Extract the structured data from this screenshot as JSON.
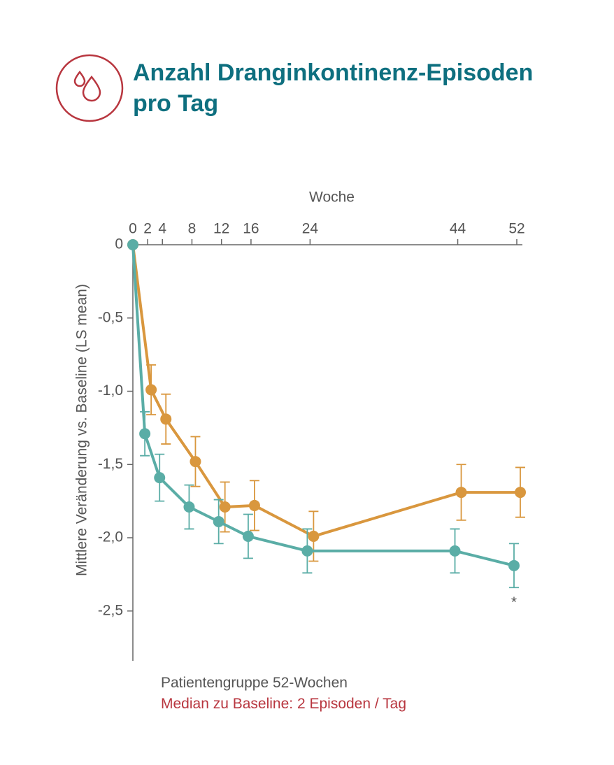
{
  "chart_data": {
    "type": "line",
    "title": "Anzahl Dranginkontinenz-Episoden pro Tag",
    "x_label": "Woche",
    "y_label": "Mittlere Veränderung vs. Baseline (LS mean)",
    "x": [
      0,
      2,
      4,
      8,
      12,
      16,
      24,
      44,
      52
    ],
    "series": [
      {
        "color": "#d9973e",
        "values": [
          0,
          -0.99,
          -1.19,
          -1.48,
          -1.79,
          -1.78,
          -1.99,
          -1.69,
          -1.69
        ],
        "errors": [
          null,
          0.17,
          0.17,
          0.17,
          0.17,
          0.17,
          0.17,
          0.19,
          0.17
        ]
      },
      {
        "color": "#5aada6",
        "values": [
          0,
          -1.29,
          -1.59,
          -1.79,
          -1.89,
          -1.99,
          -2.09,
          -2.09,
          -2.19
        ],
        "errors": [
          null,
          0.15,
          0.16,
          0.15,
          0.15,
          0.15,
          0.15,
          0.15,
          0.15
        ]
      }
    ],
    "xlim": [
      0,
      52
    ],
    "xticks": [
      0,
      2,
      4,
      8,
      12,
      16,
      24,
      44,
      52
    ],
    "ylim": [
      -2.84,
      0
    ],
    "yticks": [
      0,
      {
        "value": -0.5,
        "label": "-0,5"
      },
      {
        "value": -1,
        "label": "-1,0"
      },
      {
        "value": -1.5,
        "label": "-1,5"
      },
      {
        "value": -2,
        "label": "-2,0"
      },
      {
        "value": -2.5,
        "label": "-2,5"
      }
    ],
    "annotation": "*",
    "notes": [
      "Patientengruppe 52-Wochen",
      "Median zu Baseline: 2 Episoden / Tag"
    ]
  }
}
